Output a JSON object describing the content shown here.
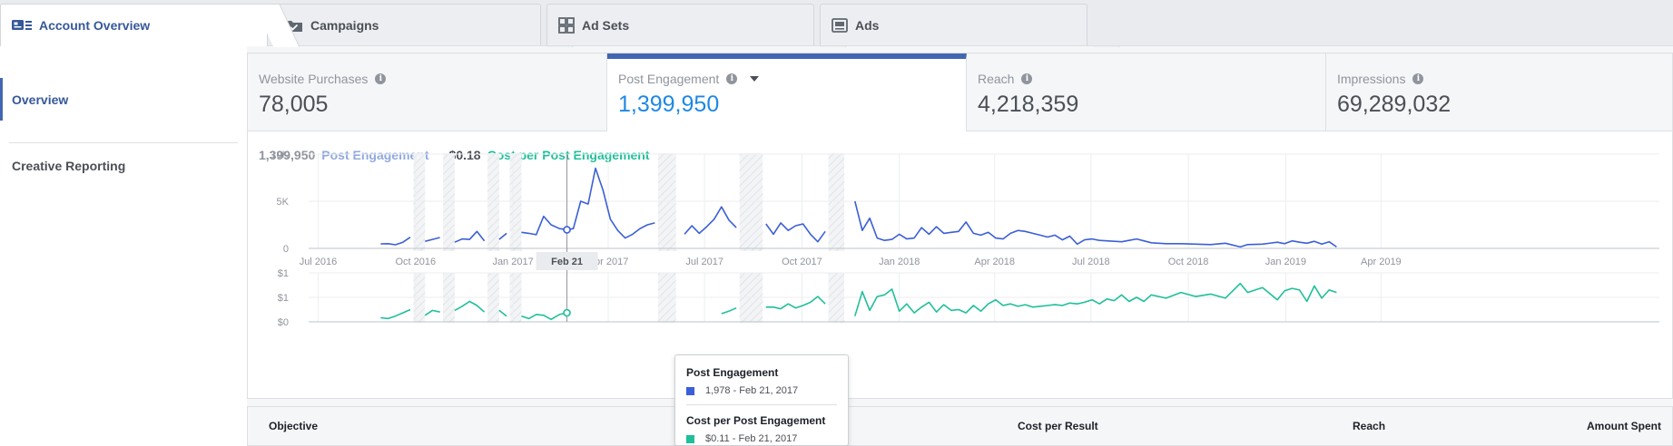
{
  "tabs": [
    {
      "label": "Account Overview",
      "icon": "account-overview-icon",
      "active": true
    },
    {
      "label": "Campaigns",
      "icon": "folder-icon",
      "active": false
    },
    {
      "label": "Ad Sets",
      "icon": "grid-icon",
      "active": false
    },
    {
      "label": "Ads",
      "icon": "ad-icon",
      "active": false
    }
  ],
  "sidebar": {
    "items": [
      {
        "label": "Overview",
        "active": true
      },
      {
        "label": "Creative Reporting",
        "active": false
      }
    ]
  },
  "metrics": [
    {
      "label": "Website Purchases",
      "value": "78,005",
      "active": false
    },
    {
      "label": "Post Engagement",
      "value": "1,399,950",
      "active": true
    },
    {
      "label": "Reach",
      "value": "4,218,359",
      "active": false
    },
    {
      "label": "Impressions",
      "value": "69,289,032",
      "active": false
    }
  ],
  "summary": {
    "engagement_value": "1,399,950",
    "engagement_label": "Post Engagement",
    "cost_value": "$0.18",
    "cost_label": "Cost per Post Engagement"
  },
  "colors": {
    "engagement": "#3b5fd6",
    "cost": "#1fbf9a",
    "accent": "#4267b2"
  },
  "chart_data": [
    {
      "type": "line",
      "series": [
        {
          "name": "Post Engagement",
          "color": "#3b5fd6"
        }
      ],
      "y_ticks": [
        "10K",
        "5K",
        "0"
      ],
      "ylim": [
        0,
        10000
      ],
      "x_ticks": [
        "Jul 2016",
        "Oct 2016",
        "Jan 2017",
        "Apr 2017",
        "Jul 2017",
        "Oct 2017",
        "Jan 2018",
        "Apr 2018",
        "Jul 2018",
        "Oct 2018",
        "Jan 2019",
        "Apr 2019"
      ],
      "hover_label": "Feb 21",
      "grid": true,
      "points": [
        [
          "2016-08-29",
          480
        ],
        [
          "2016-09-05",
          500
        ],
        [
          "2016-09-12",
          380
        ],
        [
          "2016-09-19",
          650
        ],
        [
          "2016-09-26",
          1180
        ],
        [
          "2016-10-10",
          750
        ],
        [
          "2016-10-17",
          950
        ],
        [
          "2016-10-24",
          1150
        ],
        [
          "2016-11-07",
          650
        ],
        [
          "2016-11-14",
          1000
        ],
        [
          "2016-11-21",
          950
        ],
        [
          "2016-11-28",
          1800
        ],
        [
          "2016-12-05",
          800
        ],
        [
          "2016-12-19",
          950
        ],
        [
          "2016-12-26",
          1600
        ],
        [
          "2017-01-09",
          1700
        ],
        [
          "2017-01-16",
          1600
        ],
        [
          "2017-01-23",
          1450
        ],
        [
          "2017-01-30",
          3400
        ],
        [
          "2017-02-06",
          2500
        ],
        [
          "2017-02-14",
          2100
        ],
        [
          "2017-02-21",
          1978
        ],
        [
          "2017-02-27",
          2100
        ],
        [
          "2017-03-06",
          5000
        ],
        [
          "2017-03-13",
          4700
        ],
        [
          "2017-03-20",
          8500
        ],
        [
          "2017-03-27",
          6200
        ],
        [
          "2017-04-03",
          3100
        ],
        [
          "2017-04-10",
          1900
        ],
        [
          "2017-04-17",
          1100
        ],
        [
          "2017-04-24",
          1500
        ],
        [
          "2017-05-01",
          2100
        ],
        [
          "2017-05-08",
          2500
        ],
        [
          "2017-05-15",
          2700
        ],
        [
          "2017-06-12",
          1500
        ],
        [
          "2017-06-19",
          2400
        ],
        [
          "2017-06-26",
          1600
        ],
        [
          "2017-07-03",
          2300
        ],
        [
          "2017-07-10",
          3100
        ],
        [
          "2017-07-17",
          4400
        ],
        [
          "2017-07-24",
          3000
        ],
        [
          "2017-07-31",
          2200
        ],
        [
          "2017-08-28",
          2600
        ],
        [
          "2017-09-04",
          1500
        ],
        [
          "2017-09-11",
          2700
        ],
        [
          "2017-09-18",
          1900
        ],
        [
          "2017-09-25",
          2400
        ],
        [
          "2017-10-02",
          2600
        ],
        [
          "2017-10-09",
          1500
        ],
        [
          "2017-10-16",
          700
        ],
        [
          "2017-10-23",
          1800
        ],
        [
          "2017-11-20",
          5000
        ],
        [
          "2017-11-27",
          1900
        ],
        [
          "2017-12-04",
          3200
        ],
        [
          "2017-12-11",
          1100
        ],
        [
          "2017-12-18",
          850
        ],
        [
          "2017-12-25",
          950
        ],
        [
          "2018-01-01",
          1500
        ],
        [
          "2018-01-08",
          1000
        ],
        [
          "2018-01-15",
          1100
        ],
        [
          "2018-01-22",
          2200
        ],
        [
          "2018-01-29",
          1500
        ],
        [
          "2018-02-05",
          2300
        ],
        [
          "2018-02-12",
          1600
        ],
        [
          "2018-02-19",
          1700
        ],
        [
          "2018-02-26",
          1800
        ],
        [
          "2018-03-05",
          2800
        ],
        [
          "2018-03-12",
          1600
        ],
        [
          "2018-03-19",
          1400
        ],
        [
          "2018-03-26",
          1700
        ],
        [
          "2018-04-02",
          1100
        ],
        [
          "2018-04-09",
          1000
        ],
        [
          "2018-04-16",
          1600
        ],
        [
          "2018-04-23",
          1900
        ],
        [
          "2018-04-30",
          1800
        ],
        [
          "2018-05-07",
          1600
        ],
        [
          "2018-05-14",
          1400
        ],
        [
          "2018-05-21",
          1200
        ],
        [
          "2018-05-28",
          1400
        ],
        [
          "2018-06-04",
          900
        ],
        [
          "2018-06-11",
          1300
        ],
        [
          "2018-06-18",
          450
        ],
        [
          "2018-06-25",
          900
        ],
        [
          "2018-07-02",
          1000
        ],
        [
          "2018-07-09",
          850
        ],
        [
          "2018-07-16",
          800
        ],
        [
          "2018-07-23",
          750
        ],
        [
          "2018-07-30",
          700
        ],
        [
          "2018-08-06",
          850
        ],
        [
          "2018-08-13",
          1000
        ],
        [
          "2018-08-20",
          800
        ],
        [
          "2018-08-27",
          600
        ],
        [
          "2018-09-10",
          500
        ],
        [
          "2018-09-24",
          500
        ],
        [
          "2018-10-08",
          450
        ],
        [
          "2018-10-22",
          400
        ],
        [
          "2018-11-05",
          550
        ],
        [
          "2018-11-19",
          150
        ],
        [
          "2018-11-26",
          400
        ],
        [
          "2018-12-10",
          450
        ],
        [
          "2018-12-24",
          650
        ],
        [
          "2018-12-31",
          500
        ],
        [
          "2019-01-07",
          800
        ],
        [
          "2019-01-14",
          650
        ],
        [
          "2019-01-21",
          550
        ],
        [
          "2019-01-28",
          750
        ],
        [
          "2019-02-04",
          450
        ],
        [
          "2019-02-11",
          700
        ],
        [
          "2019-02-18",
          150
        ]
      ]
    },
    {
      "type": "line",
      "series": [
        {
          "name": "Cost per Post Engagement",
          "color": "#1fbf9a"
        }
      ],
      "y_ticks": [
        "$1",
        "$1",
        "$0"
      ],
      "ylim": [
        0,
        0.6
      ],
      "hover_label": "Feb 21",
      "grid": true,
      "points": [
        [
          "2016-08-29",
          0.05
        ],
        [
          "2016-09-05",
          0.04
        ],
        [
          "2016-09-12",
          0.07
        ],
        [
          "2016-09-19",
          0.11
        ],
        [
          "2016-09-26",
          0.15
        ],
        [
          "2016-10-10",
          0.08
        ],
        [
          "2016-10-17",
          0.14
        ],
        [
          "2016-10-24",
          0.12
        ],
        [
          "2016-11-07",
          0.14
        ],
        [
          "2016-11-14",
          0.19
        ],
        [
          "2016-11-21",
          0.25
        ],
        [
          "2016-11-28",
          0.2
        ],
        [
          "2016-12-05",
          0.12
        ],
        [
          "2016-12-19",
          0.14
        ],
        [
          "2016-12-26",
          0.07
        ],
        [
          "2017-01-09",
          0.07
        ],
        [
          "2017-01-16",
          0.04
        ],
        [
          "2017-01-23",
          0.09
        ],
        [
          "2017-01-30",
          0.08
        ],
        [
          "2017-02-06",
          0.03
        ],
        [
          "2017-02-14",
          0.09
        ],
        [
          "2017-02-21",
          0.11
        ],
        [
          "2017-07-17",
          0.1
        ],
        [
          "2017-07-24",
          0.13
        ],
        [
          "2017-07-31",
          0.17
        ],
        [
          "2017-08-28",
          0.18
        ],
        [
          "2017-09-04",
          0.18
        ],
        [
          "2017-09-11",
          0.16
        ],
        [
          "2017-09-18",
          0.22
        ],
        [
          "2017-09-25",
          0.17
        ],
        [
          "2017-10-02",
          0.2
        ],
        [
          "2017-10-09",
          0.24
        ],
        [
          "2017-10-16",
          0.31
        ],
        [
          "2017-10-23",
          0.22
        ],
        [
          "2017-11-20",
          0.07
        ],
        [
          "2017-11-27",
          0.37
        ],
        [
          "2017-12-04",
          0.14
        ],
        [
          "2017-12-11",
          0.31
        ],
        [
          "2017-12-18",
          0.33
        ],
        [
          "2017-12-25",
          0.4
        ],
        [
          "2018-01-01",
          0.13
        ],
        [
          "2018-01-08",
          0.22
        ],
        [
          "2018-01-15",
          0.11
        ],
        [
          "2018-01-22",
          0.18
        ],
        [
          "2018-01-29",
          0.24
        ],
        [
          "2018-02-05",
          0.12
        ],
        [
          "2018-02-12",
          0.21
        ],
        [
          "2018-02-19",
          0.14
        ],
        [
          "2018-02-26",
          0.15
        ],
        [
          "2018-03-05",
          0.11
        ],
        [
          "2018-03-12",
          0.2
        ],
        [
          "2018-03-19",
          0.13
        ],
        [
          "2018-03-26",
          0.22
        ],
        [
          "2018-04-02",
          0.27
        ],
        [
          "2018-04-09",
          0.2
        ],
        [
          "2018-04-16",
          0.22
        ],
        [
          "2018-04-23",
          0.19
        ],
        [
          "2018-04-30",
          0.21
        ],
        [
          "2018-05-07",
          0.18
        ],
        [
          "2018-05-14",
          0.19
        ],
        [
          "2018-05-21",
          0.2
        ],
        [
          "2018-05-28",
          0.21
        ],
        [
          "2018-06-04",
          0.2
        ],
        [
          "2018-06-11",
          0.23
        ],
        [
          "2018-06-18",
          0.22
        ],
        [
          "2018-06-25",
          0.24
        ],
        [
          "2018-07-02",
          0.27
        ],
        [
          "2018-07-09",
          0.22
        ],
        [
          "2018-07-16",
          0.28
        ],
        [
          "2018-07-23",
          0.26
        ],
        [
          "2018-07-30",
          0.33
        ],
        [
          "2018-08-06",
          0.25
        ],
        [
          "2018-08-13",
          0.3
        ],
        [
          "2018-08-20",
          0.25
        ],
        [
          "2018-08-27",
          0.33
        ],
        [
          "2018-09-10",
          0.29
        ],
        [
          "2018-09-24",
          0.36
        ],
        [
          "2018-10-08",
          0.31
        ],
        [
          "2018-10-22",
          0.34
        ],
        [
          "2018-11-05",
          0.29
        ],
        [
          "2018-11-19",
          0.47
        ],
        [
          "2018-11-26",
          0.36
        ],
        [
          "2018-12-10",
          0.42
        ],
        [
          "2018-12-24",
          0.27
        ],
        [
          "2018-12-31",
          0.38
        ],
        [
          "2019-01-07",
          0.41
        ],
        [
          "2019-01-14",
          0.39
        ],
        [
          "2019-01-21",
          0.25
        ],
        [
          "2019-01-28",
          0.44
        ],
        [
          "2019-02-04",
          0.29
        ],
        [
          "2019-02-11",
          0.39
        ],
        [
          "2019-02-18",
          0.36
        ]
      ]
    }
  ],
  "tooltip": {
    "title1": "Post Engagement",
    "row1": "1,978 - Feb 21, 2017",
    "title2": "Cost per Post Engagement",
    "row2": "$0.11 - Feb 21, 2017"
  },
  "table": {
    "headers": [
      "Objective",
      "Cost per Result",
      "Reach",
      "Amount Spent"
    ]
  }
}
